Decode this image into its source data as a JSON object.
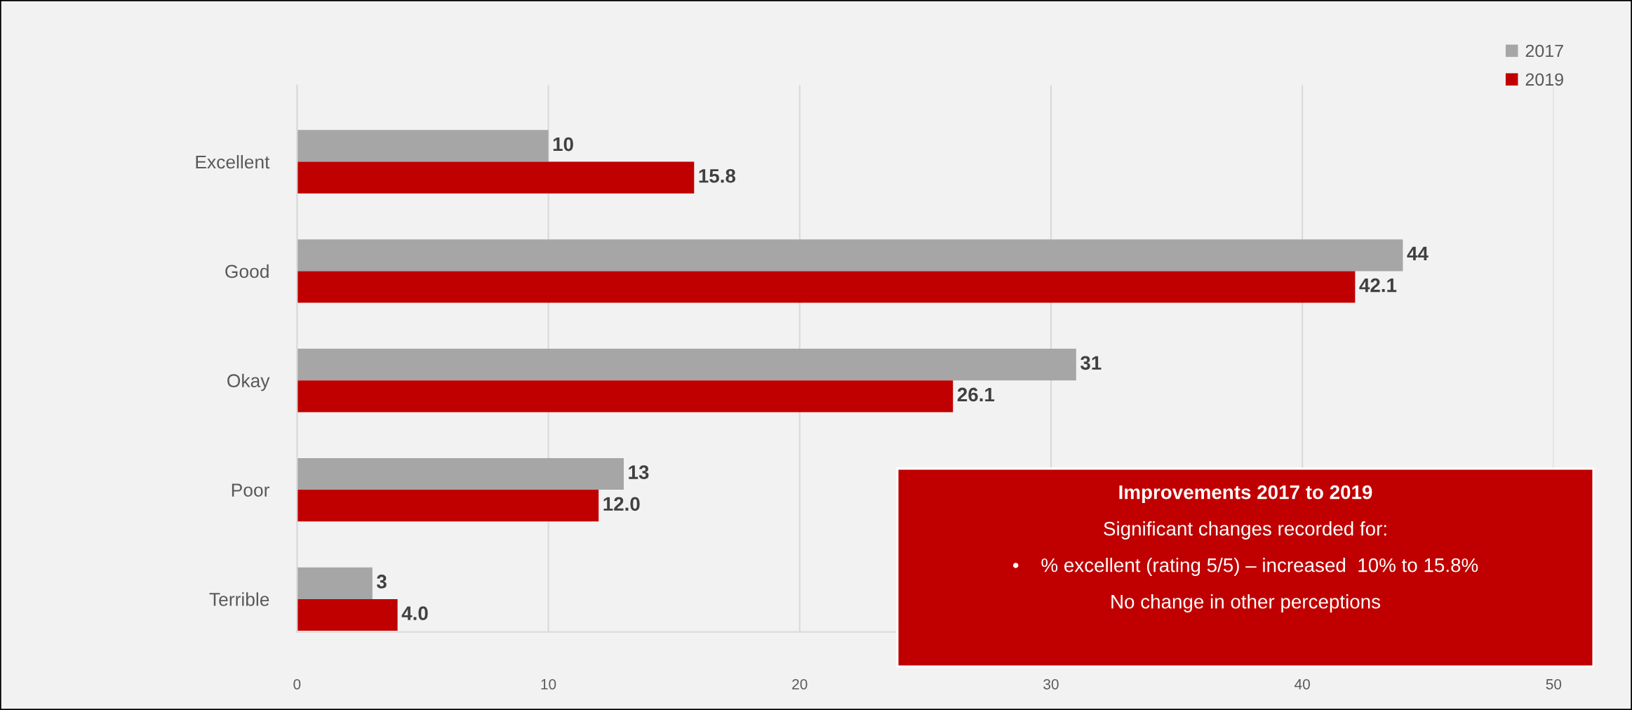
{
  "chart_data": {
    "type": "bar",
    "orientation": "horizontal",
    "categories": [
      "Excellent",
      "Good",
      "Okay",
      "Poor",
      "Terrible"
    ],
    "series": [
      {
        "name": "2017",
        "color": "#a6a6a6",
        "values": [
          10,
          44,
          31,
          13,
          3
        ],
        "value_labels": [
          "10",
          "44",
          "31",
          "13",
          "3"
        ]
      },
      {
        "name": "2019",
        "color": "#c00000",
        "values": [
          15.8,
          42.1,
          26.1,
          12.0,
          4.0
        ],
        "value_labels": [
          "15.8",
          "42.1",
          "26.1",
          "12.0",
          "4.0"
        ]
      }
    ],
    "xlim": [
      0,
      50
    ],
    "xticks": [
      0,
      10,
      20,
      30,
      40,
      50
    ],
    "grid": "x",
    "legend": "top right",
    "annotations": [
      "Improvements 2017 to 2019",
      "Significant changes recorded for:",
      "•    % excellent (rating 5/5) – increased  10% to 15.8%",
      "No change in other perceptions"
    ]
  }
}
